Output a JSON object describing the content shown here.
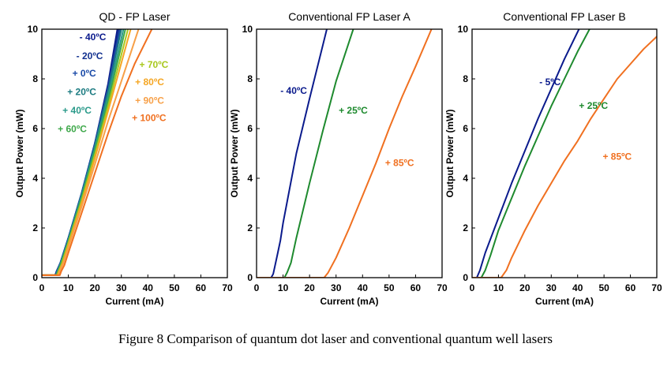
{
  "caption": "Figure 8 Comparison of quantum dot laser and conventional quantum well lasers",
  "chart_data": [
    {
      "type": "line",
      "title": "QD - FP Laser",
      "xlabel": "Current (mA)",
      "ylabel": "Output Power (mW)",
      "xlim": [
        0,
        70
      ],
      "ylim": [
        0,
        10
      ],
      "xticks": [
        "0",
        "10",
        "20",
        "30",
        "40",
        "50",
        "60",
        "70"
      ],
      "yticks": [
        "0",
        "2",
        "4",
        "6",
        "8",
        "10"
      ],
      "grid": false,
      "series": [
        {
          "name": "- 40ºC",
          "color": "#0a1a8c",
          "x": [
            0,
            5.0,
            5.5,
            7,
            10,
            15,
            20,
            25,
            28.5
          ],
          "y": [
            0.1,
            0.1,
            0.25,
            0.6,
            1.6,
            3.4,
            5.4,
            7.8,
            10
          ]
        },
        {
          "name": "- 20ºC",
          "color": "#12308f",
          "x": [
            0,
            5.1,
            5.6,
            7,
            10,
            15,
            20,
            25,
            29.0
          ],
          "y": [
            0.1,
            0.1,
            0.25,
            0.6,
            1.6,
            3.4,
            5.4,
            7.7,
            10
          ]
        },
        {
          "name": "+ 0ºC",
          "color": "#1a4aa8",
          "x": [
            0,
            5.2,
            5.7,
            7,
            10,
            15,
            20,
            25,
            29.5
          ],
          "y": [
            0.1,
            0.1,
            0.25,
            0.6,
            1.6,
            3.4,
            5.4,
            7.6,
            10
          ]
        },
        {
          "name": "+ 20ºC",
          "color": "#1a7a80",
          "x": [
            0,
            5.3,
            5.8,
            7,
            10,
            15,
            20,
            25,
            30.0
          ],
          "y": [
            0.1,
            0.1,
            0.25,
            0.55,
            1.55,
            3.35,
            5.3,
            7.5,
            10
          ]
        },
        {
          "name": "+ 40ºC",
          "color": "#2a9a8a",
          "x": [
            0,
            5.4,
            5.9,
            7,
            10,
            15,
            20,
            25,
            30.8
          ],
          "y": [
            0.1,
            0.1,
            0.25,
            0.55,
            1.5,
            3.3,
            5.2,
            7.3,
            10
          ]
        },
        {
          "name": "+ 60ºC",
          "color": "#3ea84a",
          "x": [
            0,
            5.6,
            6.1,
            7,
            10,
            15,
            20,
            25,
            31.5
          ],
          "y": [
            0.1,
            0.1,
            0.25,
            0.5,
            1.45,
            3.2,
            5.1,
            7.1,
            10
          ]
        },
        {
          "name": "+ 70ºC",
          "color": "#a8c81e",
          "x": [
            0,
            5.8,
            6.3,
            7.5,
            10,
            15,
            20,
            25,
            32.5
          ],
          "y": [
            0.1,
            0.1,
            0.25,
            0.55,
            1.4,
            3.1,
            4.95,
            6.9,
            10
          ]
        },
        {
          "name": "+ 80ºC",
          "color": "#f5a623",
          "x": [
            0,
            6.0,
            6.5,
            8,
            10,
            15,
            20,
            25,
            33.5
          ],
          "y": [
            0.1,
            0.1,
            0.25,
            0.6,
            1.3,
            3.0,
            4.8,
            6.7,
            10
          ]
        },
        {
          "name": "+ 90ºC",
          "color": "#f7a048",
          "x": [
            0,
            6.3,
            6.8,
            8,
            10,
            15,
            20,
            25,
            30,
            36.5
          ],
          "y": [
            0.1,
            0.1,
            0.25,
            0.55,
            1.2,
            2.85,
            4.55,
            6.3,
            7.9,
            10
          ]
        },
        {
          "name": "+ 100ºC",
          "color": "#f07020",
          "x": [
            0,
            6.8,
            7.3,
            8.5,
            10,
            15,
            20,
            25,
            30,
            35,
            41.5
          ],
          "y": [
            0.1,
            0.1,
            0.25,
            0.5,
            1.0,
            2.6,
            4.2,
            5.8,
            7.3,
            8.6,
            10
          ]
        }
      ],
      "annotations": [
        {
          "text": "- 40ºC",
          "color": "#0a1a8c",
          "x": 14.2,
          "y": 9.55,
          "anchor": "start"
        },
        {
          "text": "- 20ºC",
          "color": "#12308f",
          "x": 13.0,
          "y": 8.8,
          "anchor": "start"
        },
        {
          "text": "+ 0ºC",
          "color": "#1a4aa8",
          "x": 11.5,
          "y": 8.1,
          "anchor": "start"
        },
        {
          "text": "+ 20ºC",
          "color": "#1a7a80",
          "x": 9.6,
          "y": 7.35,
          "anchor": "start"
        },
        {
          "text": "+ 40ºC",
          "color": "#2a9a8a",
          "x": 7.8,
          "y": 6.6,
          "anchor": "start"
        },
        {
          "text": "+ 60ºC",
          "color": "#3ea84a",
          "x": 6.0,
          "y": 5.85,
          "anchor": "start"
        },
        {
          "text": "+ 70ºC",
          "color": "#a8c81e",
          "x": 36.8,
          "y": 8.45,
          "anchor": "start"
        },
        {
          "text": "+ 80ºC",
          "color": "#f5a623",
          "x": 35.2,
          "y": 7.75,
          "anchor": "start"
        },
        {
          "text": "+ 90ºC",
          "color": "#f7a048",
          "x": 35.2,
          "y": 7.0,
          "anchor": "start"
        },
        {
          "text": "+ 100ºC",
          "color": "#f07020",
          "x": 34.0,
          "y": 6.3,
          "anchor": "start"
        }
      ]
    },
    {
      "type": "line",
      "title": "Conventional FP Laser A",
      "xlabel": "Current (mA)",
      "ylabel": "Output Power (mW)",
      "xlim": [
        0,
        70
      ],
      "ylim": [
        0,
        10
      ],
      "xticks": [
        "0",
        "10",
        "20",
        "30",
        "40",
        "50",
        "60",
        "70"
      ],
      "yticks": [
        "0",
        "2",
        "4",
        "6",
        "8",
        "10"
      ],
      "grid": false,
      "series": [
        {
          "name": "- 40ºC",
          "color": "#0a1a8c",
          "x": [
            0,
            5.5,
            6.3,
            7,
            8,
            9,
            10,
            15,
            20,
            26.5
          ],
          "y": [
            0,
            0,
            0.15,
            0.5,
            1.0,
            1.5,
            2.2,
            5.0,
            7.2,
            10
          ]
        },
        {
          "name": "+ 25ºC",
          "color": "#1e8a2e",
          "x": [
            0,
            10.5,
            11.5,
            13,
            15,
            20,
            25,
            30,
            36.5
          ],
          "y": [
            0,
            0,
            0.2,
            0.6,
            1.6,
            3.8,
            5.9,
            7.9,
            10
          ]
        },
        {
          "name": "+ 85ºC",
          "color": "#f07020",
          "x": [
            0,
            25.5,
            27,
            30,
            35,
            40,
            45,
            50,
            55,
            60,
            66
          ],
          "y": [
            0,
            0,
            0.2,
            0.8,
            2.0,
            3.3,
            4.6,
            6.0,
            7.3,
            8.5,
            10
          ]
        }
      ],
      "annotations": [
        {
          "text": "- 40ºC",
          "color": "#0a1a8c",
          "x": 9.0,
          "y": 7.4,
          "anchor": "start"
        },
        {
          "text": "+ 25ºC",
          "color": "#1e8a2e",
          "x": 31.0,
          "y": 6.6,
          "anchor": "start"
        },
        {
          "text": "+ 85ºC",
          "color": "#f07020",
          "x": 48.5,
          "y": 4.5,
          "anchor": "start"
        }
      ]
    },
    {
      "type": "line",
      "title": "Conventional FP Laser B",
      "xlabel": "Current (mA)",
      "ylabel": "Output Power (mW)",
      "xlim": [
        0,
        70
      ],
      "ylim": [
        0,
        10
      ],
      "xticks": [
        "0",
        "10",
        "20",
        "30",
        "40",
        "50",
        "60",
        "70"
      ],
      "yticks": [
        "0",
        "2",
        "4",
        "6",
        "8",
        "10"
      ],
      "grid": false,
      "series": [
        {
          "name": "- 5ºC",
          "color": "#0a1a8c",
          "x": [
            0,
            1.8,
            3,
            5,
            10,
            15,
            20,
            25,
            30,
            35,
            40.5
          ],
          "y": [
            0,
            0,
            0.3,
            1.0,
            2.4,
            3.8,
            5.1,
            6.4,
            7.6,
            8.8,
            10
          ]
        },
        {
          "name": "+ 25ºC",
          "color": "#1e8a2e",
          "x": [
            0,
            3.5,
            5,
            7,
            10,
            15,
            20,
            25,
            30,
            35,
            40,
            44.5
          ],
          "y": [
            0,
            0,
            0.3,
            0.9,
            1.9,
            3.2,
            4.5,
            5.7,
            6.9,
            8.0,
            9.1,
            10
          ]
        },
        {
          "name": "+ 85ºC",
          "color": "#f07020",
          "x": [
            0,
            11,
            13,
            15,
            20,
            25,
            30,
            35,
            40,
            45,
            50,
            55,
            60,
            65,
            70
          ],
          "y": [
            0,
            0,
            0.3,
            0.8,
            1.9,
            2.9,
            3.8,
            4.7,
            5.5,
            6.4,
            7.2,
            8.0,
            8.6,
            9.2,
            9.7
          ]
        }
      ],
      "annotations": [
        {
          "text": "- 5ºC",
          "color": "#0a1a8c",
          "x": 25.5,
          "y": 7.75,
          "anchor": "start"
        },
        {
          "text": "+ 25ºC",
          "color": "#1e8a2e",
          "x": 40.5,
          "y": 6.8,
          "anchor": "start"
        },
        {
          "text": "+ 85ºC",
          "color": "#f07020",
          "x": 49.5,
          "y": 4.75,
          "anchor": "start"
        }
      ]
    }
  ]
}
